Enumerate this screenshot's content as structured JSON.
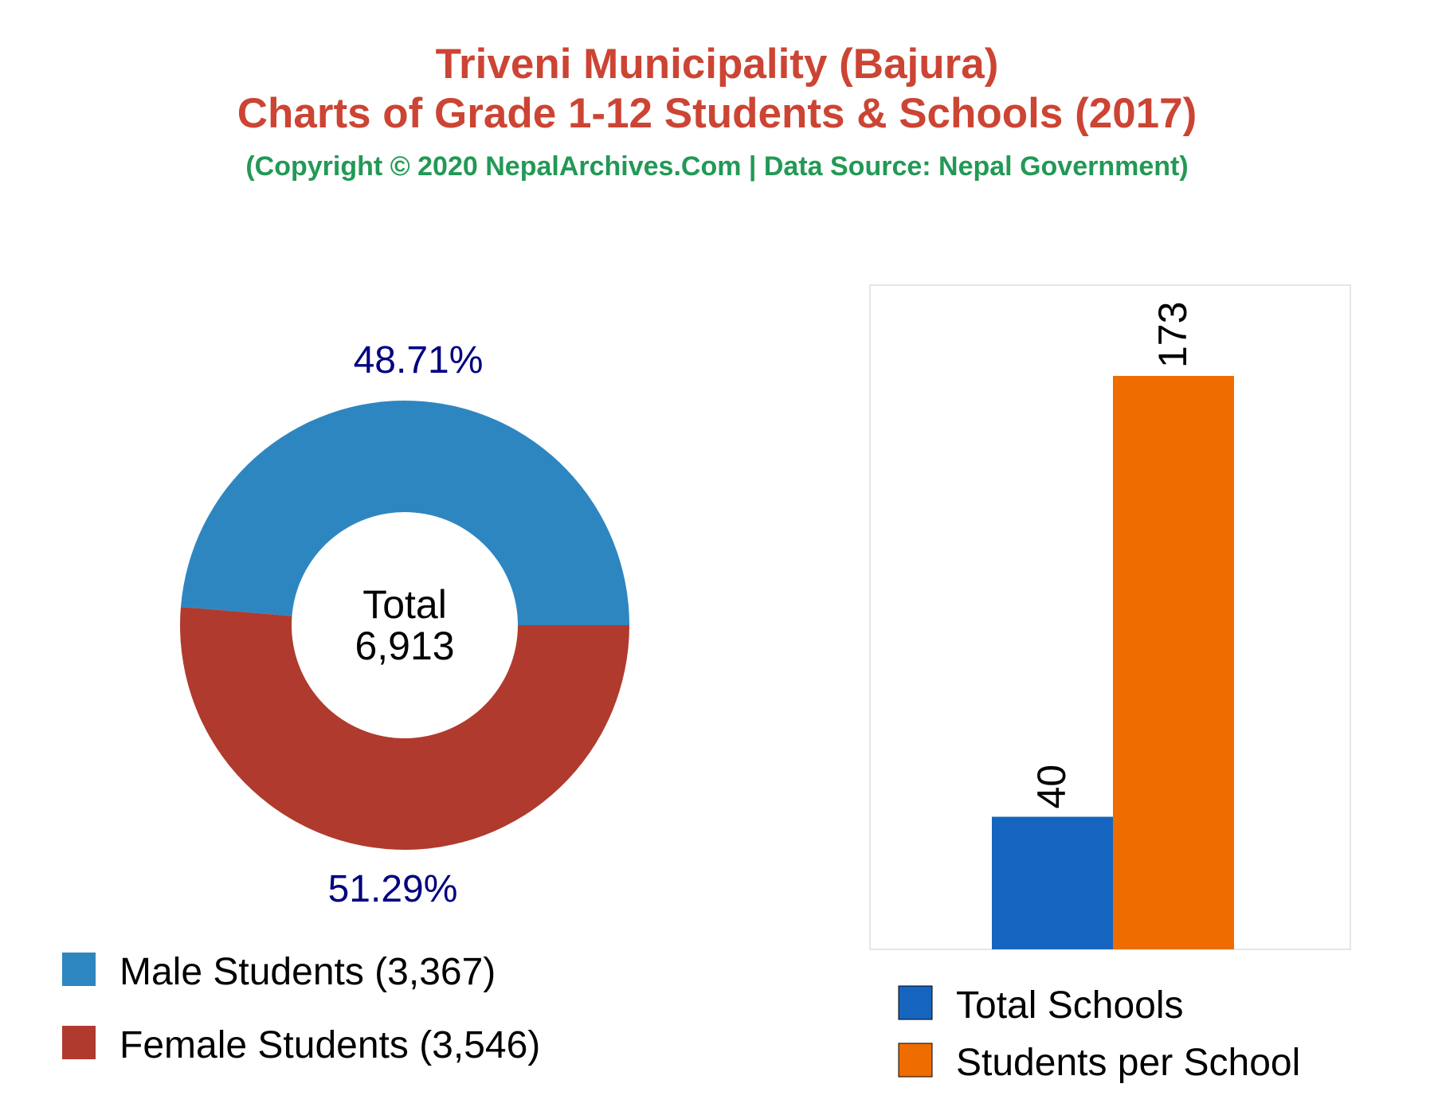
{
  "header": {
    "title_line1": "Triveni Municipality (Bajura)",
    "title_line2": "Charts of Grade 1-12 Students & Schools (2017)",
    "subtitle": "(Copyright © 2020 NepalArchives.Com | Data Source: Nepal Government)"
  },
  "donut": {
    "center_label": "Total",
    "center_value": "6,913",
    "male_pct_label": "48.71%",
    "female_pct_label": "51.29%",
    "legend": [
      {
        "label": "Male Students (3,367)",
        "color": "#2e86c1"
      },
      {
        "label": "Female Students (3,546)",
        "color": "#b03a2e"
      }
    ]
  },
  "bars": {
    "legend": [
      {
        "label": "Total Schools",
        "color": "#1565c0"
      },
      {
        "label": "Students per School",
        "color": "#ef6c00"
      }
    ]
  },
  "colors": {
    "title": "#cc4433",
    "subtitle": "#229955",
    "pct_label": "#000080",
    "male": "#2e86c1",
    "female": "#b03a2e",
    "schools": "#1565c0",
    "per_school": "#ef6c00"
  },
  "chart_data": [
    {
      "type": "pie",
      "variant": "donut",
      "categories": [
        "Male Students",
        "Female Students"
      ],
      "values": [
        3367,
        3546
      ],
      "percentages": [
        48.71,
        51.29
      ],
      "total": 6913,
      "legend_position": "bottom"
    },
    {
      "type": "bar",
      "categories": [
        "Total Schools",
        "Students per School"
      ],
      "values": [
        40,
        173
      ],
      "ylim": [
        0,
        200
      ],
      "grid": false,
      "legend_position": "bottom"
    }
  ]
}
